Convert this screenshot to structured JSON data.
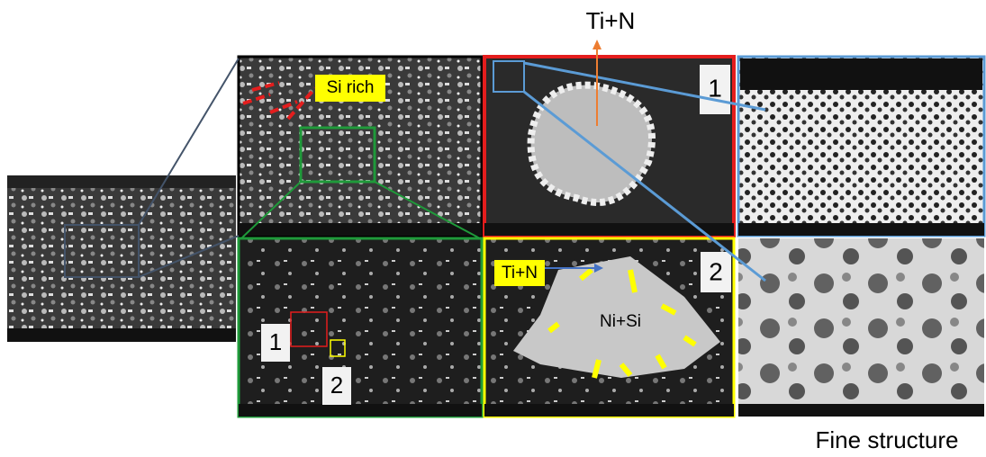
{
  "labels": {
    "top": "Ti+N",
    "si_rich": "Si rich",
    "red_panel_number": "1",
    "yellow_panel_number": "2",
    "yellow_panel_label": "Ti+N",
    "center_label": "Ni+Si",
    "green_marker_1": "1",
    "green_marker_2": "2",
    "caption": "Fine structure"
  }
}
